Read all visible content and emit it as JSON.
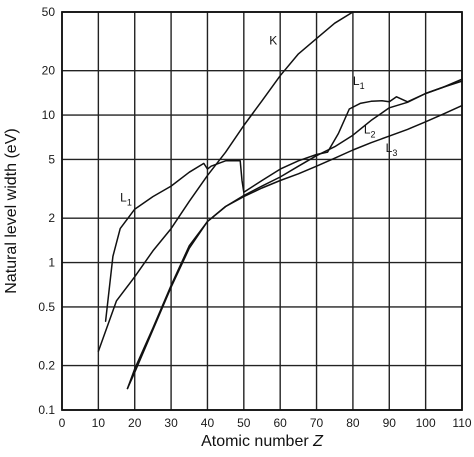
{
  "chart_data": {
    "type": "line",
    "title": "",
    "xlabel": "Atomic number",
    "xlabel_var": "Z",
    "ylabel": "Natural level width (eV)",
    "y_scale": "log",
    "xlim": [
      0,
      110
    ],
    "ylim": [
      0.1,
      50
    ],
    "x_ticks": [
      0,
      10,
      20,
      30,
      40,
      50,
      60,
      70,
      80,
      90,
      100,
      110
    ],
    "x_tick_labels": [
      "0",
      "10",
      "20",
      "30",
      "40",
      "50",
      "60",
      "70",
      "80",
      "90",
      "100",
      "110"
    ],
    "y_ticks": [
      0.1,
      0.2,
      0.5,
      1,
      2,
      5,
      10,
      20,
      50
    ],
    "y_tick_labels": [
      "0.1",
      "0.2",
      "0.5",
      "1",
      "2",
      "5",
      "10",
      "20",
      "50"
    ],
    "grid": true,
    "series": [
      {
        "name": "K",
        "label_main": "K",
        "label_sub": "",
        "label_at": [
          57,
          30
        ],
        "x": [
          10,
          15,
          20,
          25,
          30,
          35,
          40,
          45,
          50,
          55,
          60,
          65,
          70,
          75,
          80
        ],
        "y": [
          0.25,
          0.55,
          0.8,
          1.2,
          1.7,
          2.6,
          3.9,
          5.6,
          8.5,
          12.5,
          18.5,
          26,
          33,
          42,
          50
        ]
      },
      {
        "name": "L1",
        "label_main": "L",
        "label_sub": "1",
        "label_at": [
          [
            16,
            2.6
          ],
          [
            80,
            16
          ]
        ],
        "x": [
          12,
          14,
          16,
          20,
          25,
          30,
          35,
          39,
          40,
          41,
          45,
          49,
          49.5,
          50,
          55,
          60,
          65,
          70,
          73,
          76,
          79,
          82,
          85,
          88,
          90,
          92,
          95,
          100,
          105,
          110
        ],
        "y": [
          0.4,
          1.1,
          1.7,
          2.3,
          2.8,
          3.3,
          4.1,
          4.7,
          4.3,
          4.5,
          4.9,
          4.9,
          3.6,
          3.0,
          3.6,
          4.3,
          4.9,
          5.4,
          5.6,
          7.5,
          11.0,
          12.0,
          12.4,
          12.5,
          12.3,
          13.3,
          12.3,
          14.0,
          15.5,
          17.5
        ]
      },
      {
        "name": "L2",
        "label_main": "L",
        "label_sub": "2",
        "label_at": [
          83,
          7.5
        ],
        "x": [
          18,
          20,
          25,
          30,
          35,
          40,
          45,
          50,
          55,
          60,
          65,
          70,
          75,
          80,
          85,
          90,
          95,
          100,
          105,
          110
        ],
        "y": [
          0.14,
          0.18,
          0.35,
          0.68,
          1.25,
          1.9,
          2.4,
          2.85,
          3.3,
          3.8,
          4.5,
          5.3,
          6.1,
          7.3,
          9.2,
          11.2,
          12.2,
          14.0,
          15.5,
          17.0
        ]
      },
      {
        "name": "L3",
        "label_main": "L",
        "label_sub": "3",
        "label_at": [
          89,
          5.6
        ],
        "x": [
          18,
          20,
          25,
          30,
          35,
          40,
          45,
          50,
          55,
          60,
          65,
          70,
          75,
          80,
          85,
          90,
          95,
          100,
          105,
          110
        ],
        "y": [
          0.14,
          0.19,
          0.36,
          0.7,
          1.3,
          1.9,
          2.4,
          2.8,
          3.2,
          3.6,
          4.0,
          4.5,
          5.1,
          5.8,
          6.5,
          7.2,
          8.0,
          9.0,
          10.2,
          11.6
        ]
      }
    ]
  }
}
